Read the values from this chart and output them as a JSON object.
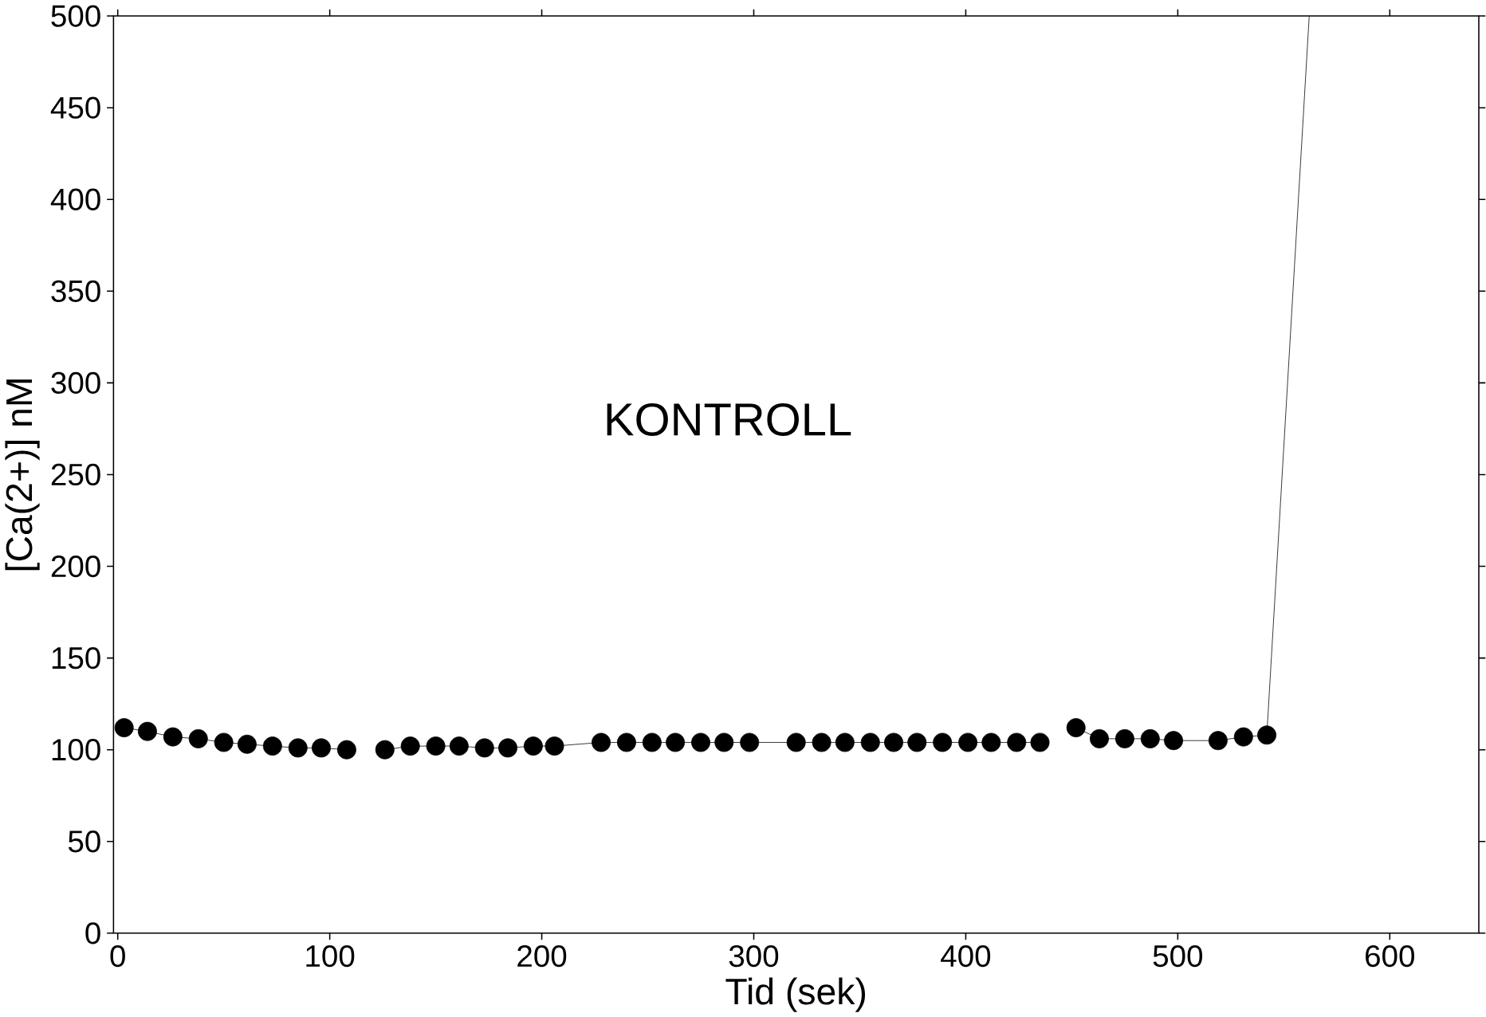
{
  "chart_data": {
    "type": "line",
    "xlabel": "Tid (sek)",
    "ylabel": "[Ca(2+)] nM",
    "annotations": [
      "KONTROLL"
    ],
    "xlim": [
      -2,
      642
    ],
    "ylim": [
      0,
      500
    ],
    "xticks": [
      0,
      100,
      200,
      300,
      400,
      500,
      600
    ],
    "yticks": [
      0,
      50,
      100,
      150,
      200,
      250,
      300,
      350,
      400,
      450,
      500
    ],
    "marker": "circle",
    "grid": false,
    "series": [
      {
        "color": "#000000",
        "x": [
          3,
          14,
          26,
          38,
          50,
          61,
          73,
          85,
          96,
          108,
          117,
          126,
          138,
          150,
          161,
          173,
          184,
          196,
          206,
          228,
          240,
          252,
          263,
          275,
          286,
          298,
          320,
          332,
          343,
          355,
          366,
          377,
          389,
          401,
          412,
          424,
          435,
          444,
          452,
          463,
          475,
          487,
          498,
          519,
          531,
          542
        ],
        "values": [
          112,
          110,
          107,
          106,
          104,
          103,
          102,
          101,
          101,
          100,
          null,
          100,
          102,
          102,
          102,
          101,
          101,
          102,
          102,
          104,
          104,
          104,
          104,
          104,
          104,
          104,
          104,
          104,
          104,
          104,
          104,
          104,
          104,
          104,
          104,
          104,
          104,
          null,
          112,
          106,
          106,
          106,
          105,
          105,
          107,
          108
        ]
      },
      {
        "color": "#000000",
        "marker": "none",
        "x": [
          542,
          562
        ],
        "values": [
          108,
          500
        ]
      }
    ]
  }
}
